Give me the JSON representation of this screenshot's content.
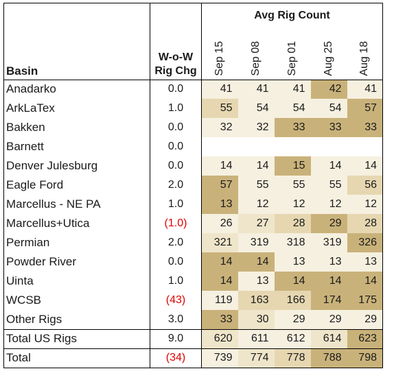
{
  "header": {
    "basin": "Basin",
    "wow_line1": "W-o-W",
    "wow_line2": "Rig Chg",
    "avg_rig_count": "Avg Rig Count",
    "weeks": [
      "Sep 15",
      "Sep 08",
      "Sep 01",
      "Aug 25",
      "Aug 18"
    ]
  },
  "colors": {
    "shade_lightest": "#f6f0e0",
    "shade_light": "#efe5ca",
    "shade_mid": "#e6d7b1",
    "shade_dark": "#c9b27a",
    "negative_text": "#e00000"
  },
  "rows": [
    {
      "basin": "Anadarko",
      "wow": "0.0",
      "wow_negative": false,
      "cells": [
        {
          "v": "41",
          "s": 0
        },
        {
          "v": "41",
          "s": 0
        },
        {
          "v": "41",
          "s": 0
        },
        {
          "v": "42",
          "s": 3
        },
        {
          "v": "41",
          "s": 0
        }
      ]
    },
    {
      "basin": "ArkLaTex",
      "wow": "1.0",
      "wow_negative": false,
      "cells": [
        {
          "v": "55",
          "s": 2
        },
        {
          "v": "54",
          "s": 0
        },
        {
          "v": "54",
          "s": 0
        },
        {
          "v": "54",
          "s": 0
        },
        {
          "v": "57",
          "s": 3
        }
      ]
    },
    {
      "basin": "Bakken",
      "wow": "0.0",
      "wow_negative": false,
      "cells": [
        {
          "v": "32",
          "s": 0
        },
        {
          "v": "32",
          "s": 0
        },
        {
          "v": "33",
          "s": 3
        },
        {
          "v": "33",
          "s": 3
        },
        {
          "v": "33",
          "s": 3
        }
      ]
    },
    {
      "basin": "Barnett",
      "wow": "0.0",
      "wow_negative": false,
      "cells": [
        {
          "v": "",
          "s": -1
        },
        {
          "v": "",
          "s": -1
        },
        {
          "v": "",
          "s": -1
        },
        {
          "v": "",
          "s": -1
        },
        {
          "v": "",
          "s": -1
        }
      ]
    },
    {
      "basin": "Denver Julesburg",
      "wow": "0.0",
      "wow_negative": false,
      "cells": [
        {
          "v": "14",
          "s": 0
        },
        {
          "v": "14",
          "s": 0
        },
        {
          "v": "15",
          "s": 3
        },
        {
          "v": "14",
          "s": 0
        },
        {
          "v": "14",
          "s": 0
        }
      ]
    },
    {
      "basin": "Eagle Ford",
      "wow": "2.0",
      "wow_negative": false,
      "cells": [
        {
          "v": "57",
          "s": 3
        },
        {
          "v": "55",
          "s": 0
        },
        {
          "v": "55",
          "s": 0
        },
        {
          "v": "55",
          "s": 0
        },
        {
          "v": "56",
          "s": 2
        }
      ]
    },
    {
      "basin": "Marcellus - NE PA",
      "wow": "1.0",
      "wow_negative": false,
      "cells": [
        {
          "v": "13",
          "s": 3
        },
        {
          "v": "12",
          "s": 0
        },
        {
          "v": "12",
          "s": 0
        },
        {
          "v": "12",
          "s": 0
        },
        {
          "v": "12",
          "s": 0
        }
      ]
    },
    {
      "basin": "Marcellus+Utica",
      "wow": "(1.0)",
      "wow_negative": true,
      "cells": [
        {
          "v": "26",
          "s": 0
        },
        {
          "v": "27",
          "s": 1
        },
        {
          "v": "28",
          "s": 2
        },
        {
          "v": "29",
          "s": 3
        },
        {
          "v": "28",
          "s": 2
        }
      ]
    },
    {
      "basin": "Permian",
      "wow": "2.0",
      "wow_negative": false,
      "cells": [
        {
          "v": "321",
          "s": 1
        },
        {
          "v": "319",
          "s": 0
        },
        {
          "v": "318",
          "s": 0
        },
        {
          "v": "319",
          "s": 0
        },
        {
          "v": "326",
          "s": 3
        }
      ]
    },
    {
      "basin": "Powder River",
      "wow": "0.0",
      "wow_negative": false,
      "cells": [
        {
          "v": "14",
          "s": 3
        },
        {
          "v": "14",
          "s": 3
        },
        {
          "v": "13",
          "s": 0
        },
        {
          "v": "13",
          "s": 0
        },
        {
          "v": "13",
          "s": 0
        }
      ]
    },
    {
      "basin": "Uinta",
      "wow": "1.0",
      "wow_negative": false,
      "cells": [
        {
          "v": "14",
          "s": 3
        },
        {
          "v": "13",
          "s": 0
        },
        {
          "v": "14",
          "s": 3
        },
        {
          "v": "14",
          "s": 3
        },
        {
          "v": "14",
          "s": 3
        }
      ]
    },
    {
      "basin": "WCSB",
      "wow": "(43)",
      "wow_negative": true,
      "cells": [
        {
          "v": "119",
          "s": 0
        },
        {
          "v": "163",
          "s": 2
        },
        {
          "v": "166",
          "s": 2
        },
        {
          "v": "174",
          "s": 3
        },
        {
          "v": "175",
          "s": 3
        }
      ]
    },
    {
      "basin": "Other Rigs",
      "wow": "3.0",
      "wow_negative": false,
      "cells": [
        {
          "v": "33",
          "s": 3
        },
        {
          "v": "30",
          "s": 1
        },
        {
          "v": "29",
          "s": 0
        },
        {
          "v": "29",
          "s": 0
        },
        {
          "v": "29",
          "s": 0
        }
      ]
    },
    {
      "basin": "Total US Rigs",
      "wow": "9.0",
      "wow_negative": false,
      "kind": "total-us",
      "cells": [
        {
          "v": "620",
          "s": 1
        },
        {
          "v": "611",
          "s": 0
        },
        {
          "v": "612",
          "s": 0
        },
        {
          "v": "614",
          "s": 1
        },
        {
          "v": "623",
          "s": 3
        }
      ]
    },
    {
      "basin": "Total",
      "wow": "(34)",
      "wow_negative": true,
      "kind": "total",
      "cells": [
        {
          "v": "739",
          "s": 0
        },
        {
          "v": "774",
          "s": 1
        },
        {
          "v": "778",
          "s": 2
        },
        {
          "v": "788",
          "s": 3
        },
        {
          "v": "798",
          "s": 3
        }
      ]
    }
  ]
}
